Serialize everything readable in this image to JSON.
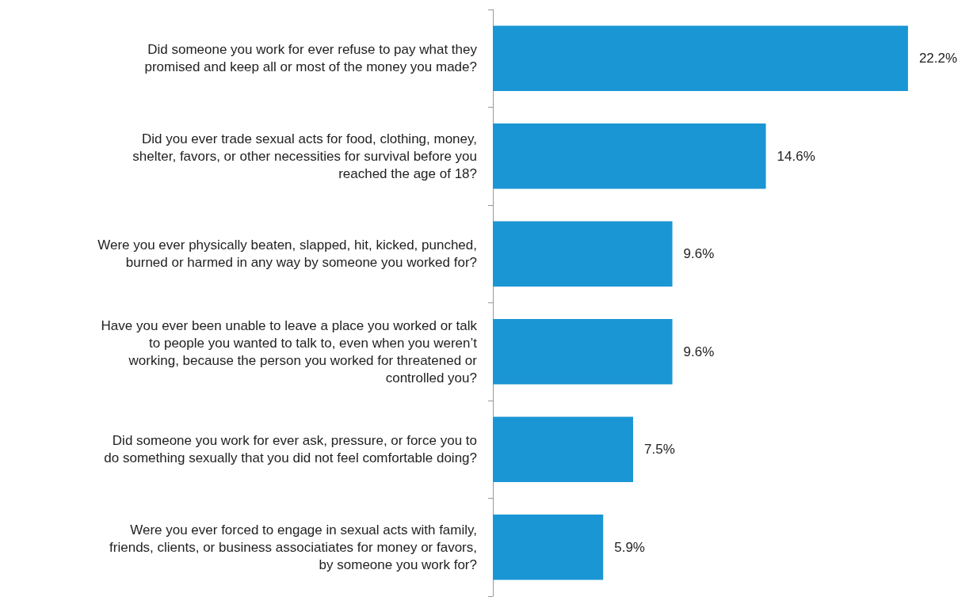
{
  "chart_data": {
    "type": "bar",
    "orientation": "horizontal",
    "categories": [
      "Did someone you work for ever refuse to pay what they\npromised and keep all or most of the money you made?",
      "Did you ever trade sexual acts for food, clothing, money,\nshelter, favors, or other necessities for survival before you\nreached the age of 18?",
      "Were you ever physically beaten, slapped, hit, kicked, punched,\nburned or harmed in any way by someone you worked for?",
      "Have you ever been unable to leave a place you worked or talk\nto people you wanted to talk to, even when you weren’t\nworking, because the person you worked for threatened or\ncontrolled you?",
      "Did someone you work for ever ask, pressure, or force you to\ndo something sexually that you did not feel comfortable doing?",
      "Were you ever forced to engage in sexual acts with family,\nfriends, clients, or business associatiates for money or favors,\nby someone you work for?"
    ],
    "values": [
      22.2,
      14.6,
      9.6,
      9.6,
      7.5,
      5.9
    ],
    "value_labels": [
      "22.2%",
      "14.6%",
      "9.6%",
      "9.6%",
      "7.5%",
      "5.9%"
    ],
    "color": "#1a96d4",
    "tick_labels": "y"
  }
}
